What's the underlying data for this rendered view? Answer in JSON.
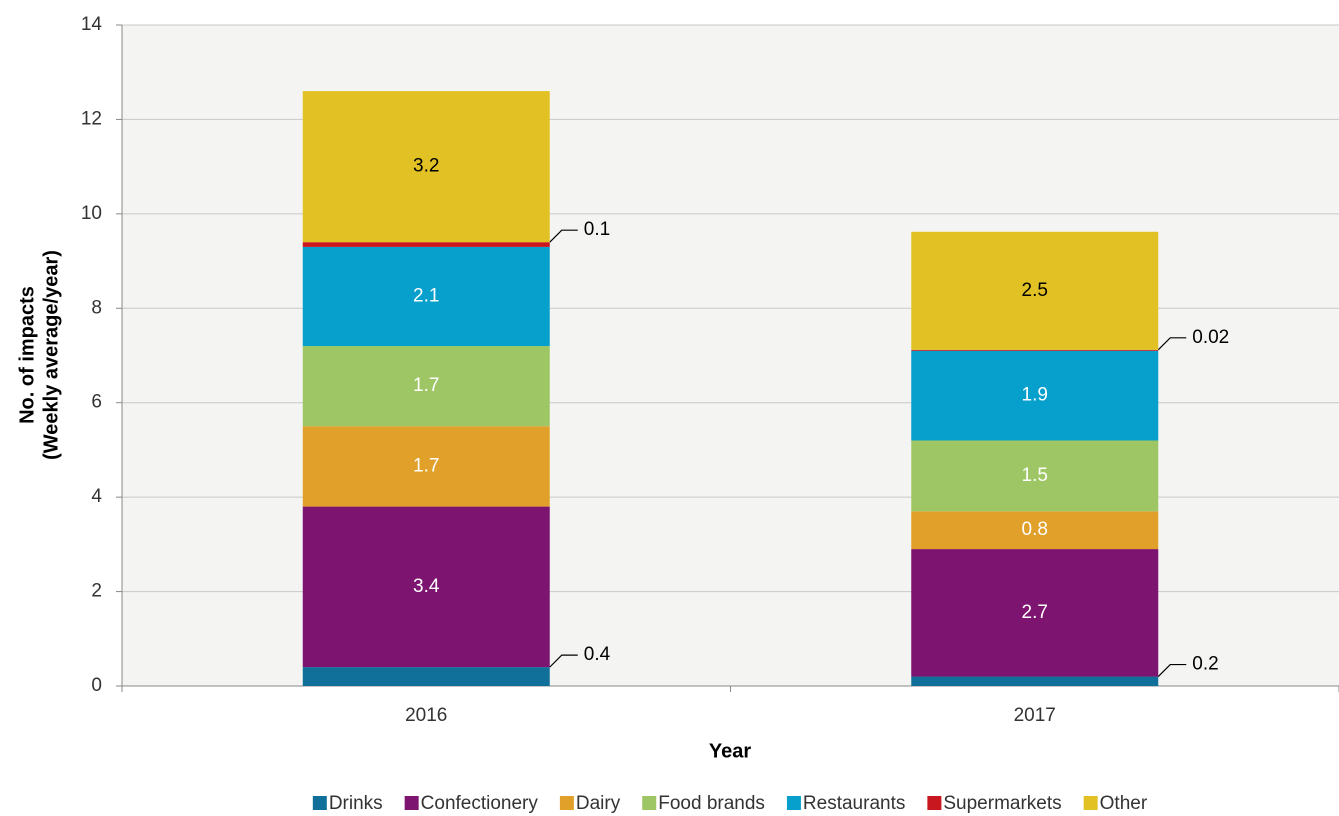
{
  "chart_data": {
    "type": "stacked_bar",
    "x_label": "Year",
    "y_label": [
      "No. of impacts",
      "(Weekly average/year)"
    ],
    "categories": [
      "2016",
      "2017"
    ],
    "series": [
      {
        "name": "Drinks",
        "color": "#10709a",
        "label_color": "#000000",
        "label_position": "outside",
        "values": [
          0.4,
          0.2
        ]
      },
      {
        "name": "Confectionery",
        "color": "#7d1470",
        "label_color": "#ffffff",
        "values": [
          3.4,
          2.7
        ]
      },
      {
        "name": "Dairy",
        "color": "#e1a02a",
        "label_color": "#ffffff",
        "values": [
          1.7,
          0.8
        ]
      },
      {
        "name": "Food brands",
        "color": "#9ec664",
        "label_color": "#ffffff",
        "values": [
          1.7,
          1.5
        ]
      },
      {
        "name": "Restaurants",
        "color": "#079fcb",
        "label_color": "#ffffff",
        "values": [
          2.1,
          1.9
        ]
      },
      {
        "name": "Supermarkets",
        "color": "#c8171e",
        "label_color": "#000000",
        "label_position": "outside",
        "values": [
          0.1,
          0.02
        ]
      },
      {
        "name": "Other",
        "color": "#e2c125",
        "label_color": "#000000",
        "values": [
          3.2,
          2.5
        ]
      }
    ],
    "ylim": [
      0,
      14
    ],
    "yticks": [
      0,
      2,
      4,
      6,
      8,
      10,
      12,
      14
    ],
    "grid": true,
    "legend": "bottom"
  }
}
